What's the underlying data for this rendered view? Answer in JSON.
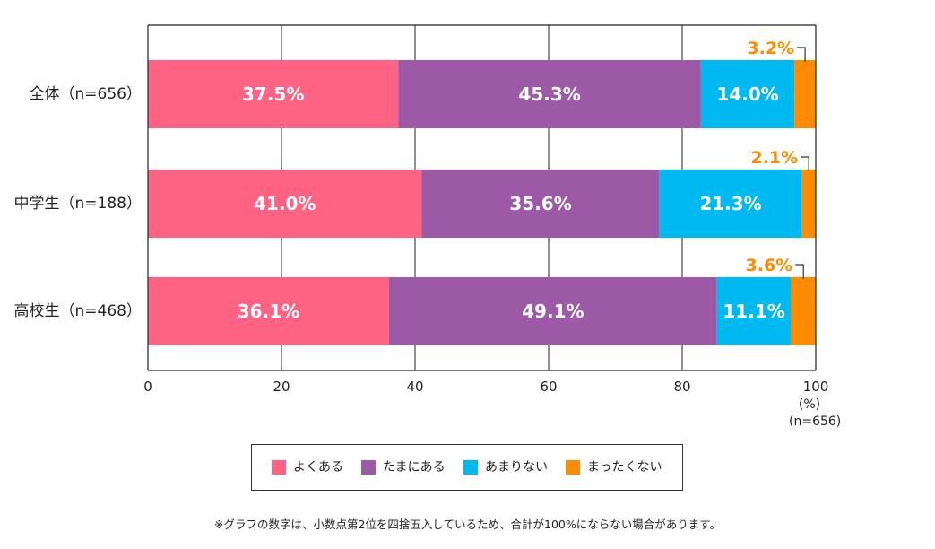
{
  "chart_data": {
    "type": "bar",
    "orientation": "horizontal",
    "stacked": true,
    "categories": [
      "全体（n=656）",
      "中学生（n=188）",
      "高校生（n=468）"
    ],
    "series": [
      {
        "name": "よくある",
        "color": "#FF6384",
        "values": [
          37.5,
          41.0,
          36.1
        ],
        "labels": [
          "37.5%",
          "41.0%",
          "36.1%"
        ]
      },
      {
        "name": "たまにある",
        "color": "#9B59A6",
        "values": [
          45.3,
          35.6,
          49.1
        ],
        "labels": [
          "45.3%",
          "35.6%",
          "49.1%"
        ]
      },
      {
        "name": "あまりない",
        "color": "#00B9F0",
        "values": [
          14.0,
          21.3,
          11.1
        ],
        "labels": [
          "14.0%",
          "21.3%",
          "11.1%"
        ]
      },
      {
        "name": "まったくない",
        "color": "#FF8C00",
        "values": [
          3.2,
          2.1,
          3.6
        ],
        "labels": [
          "3.2%",
          "2.1%",
          "3.6%"
        ]
      }
    ],
    "xlim": [
      0,
      100
    ],
    "xticks": [
      "0",
      "20",
      "40",
      "60",
      "80",
      "100"
    ],
    "xlabel": "(%)",
    "sample_note": "(n=656)",
    "grid": true,
    "legend_position": "bottom",
    "footnote": "※グラフの数字は、小数点第2位を四捨五入しているため、合計が100%にならない場合があります。"
  },
  "colors": {
    "label_text": "#ffffff",
    "callout_text": "#FF8C00",
    "axis": "#222222"
  }
}
